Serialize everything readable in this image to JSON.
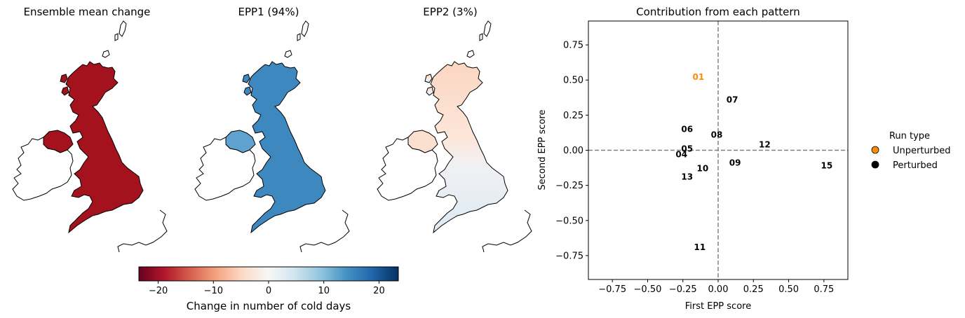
{
  "maps": {
    "panel1": {
      "title": "Ensemble mean change",
      "fill": "#a3121d"
    },
    "panel2": {
      "title": "EPP1 (94%)",
      "fill": "#3d88bf"
    },
    "panel3": {
      "title": "EPP2 (3%)",
      "fill_north": "#fad9c6",
      "fill_south": "#e6eef5"
    }
  },
  "colorbar": {
    "label": "Change in number of cold days",
    "ticks": [
      "−20",
      "−10",
      "0",
      "10",
      "20"
    ],
    "tick_values": [
      -20,
      -10,
      0,
      10,
      20
    ],
    "range": [
      -23.5,
      23.5
    ],
    "colormap": "RdBu",
    "colors": [
      "#67001f",
      "#b2182b",
      "#d6604d",
      "#f4a582",
      "#fddbc7",
      "#f7f7f7",
      "#d1e5f0",
      "#92c5de",
      "#4393c3",
      "#2166ac",
      "#053061"
    ]
  },
  "chart_data": {
    "type": "scatter",
    "title": "Contribution from each pattern",
    "xlabel": "First EPP score",
    "ylabel": "Second EPP score",
    "xlim": [
      -0.92,
      0.92
    ],
    "ylim": [
      -0.92,
      0.92
    ],
    "xticks": [
      -0.75,
      -0.5,
      -0.25,
      0.0,
      0.25,
      0.5,
      0.75
    ],
    "xtick_labels": [
      "−0.75",
      "−0.50",
      "−0.25",
      "0.00",
      "0.25",
      "0.50",
      "0.75"
    ],
    "yticks": [
      -0.75,
      -0.5,
      -0.25,
      0.0,
      0.25,
      0.5,
      0.75
    ],
    "ytick_labels": [
      "−0.75",
      "−0.50",
      "−0.25",
      "0.00",
      "0.25",
      "0.50",
      "0.75"
    ],
    "grid": false,
    "reference_lines": {
      "x": 0,
      "y": 0,
      "style": "dashed",
      "color": "#808080"
    },
    "points": [
      {
        "label": "01",
        "x": -0.14,
        "y": 0.52,
        "type": "Unperturbed"
      },
      {
        "label": "04",
        "x": -0.26,
        "y": -0.03,
        "type": "Perturbed"
      },
      {
        "label": "05",
        "x": -0.22,
        "y": 0.01,
        "type": "Perturbed"
      },
      {
        "label": "06",
        "x": -0.22,
        "y": 0.15,
        "type": "Perturbed"
      },
      {
        "label": "07",
        "x": 0.1,
        "y": 0.36,
        "type": "Perturbed"
      },
      {
        "label": "08",
        "x": -0.01,
        "y": 0.11,
        "type": "Perturbed"
      },
      {
        "label": "09",
        "x": 0.12,
        "y": -0.09,
        "type": "Perturbed"
      },
      {
        "label": "10",
        "x": -0.11,
        "y": -0.13,
        "type": "Perturbed"
      },
      {
        "label": "11",
        "x": -0.13,
        "y": -0.69,
        "type": "Perturbed"
      },
      {
        "label": "12",
        "x": 0.33,
        "y": 0.04,
        "type": "Perturbed"
      },
      {
        "label": "13",
        "x": -0.22,
        "y": -0.19,
        "type": "Perturbed"
      },
      {
        "label": "15",
        "x": 0.77,
        "y": -0.11,
        "type": "Perturbed"
      }
    ],
    "legend": {
      "title": "Run type",
      "placement": "outside-right",
      "entries": [
        {
          "name": "Unperturbed",
          "color": "#ff8c00"
        },
        {
          "name": "Perturbed",
          "color": "#000000"
        }
      ]
    }
  }
}
